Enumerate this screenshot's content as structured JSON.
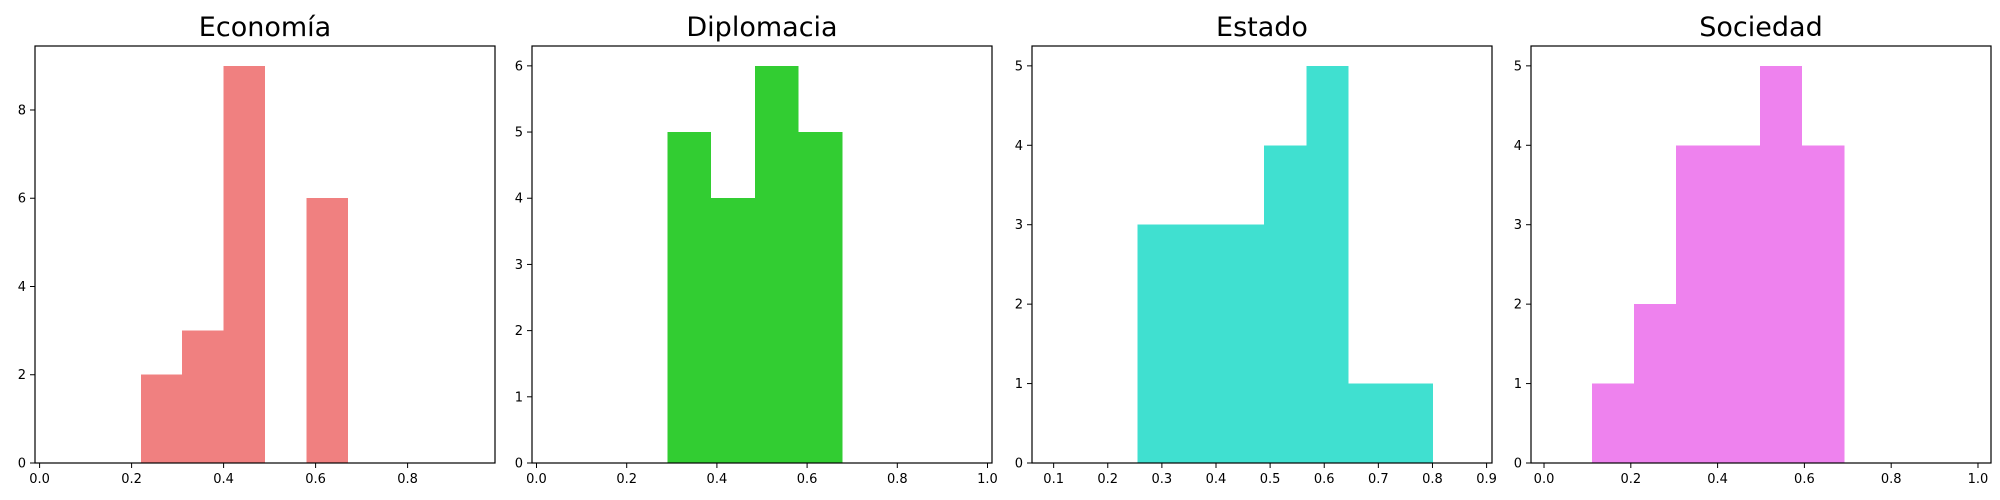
{
  "chart_data": [
    {
      "type": "bar",
      "title": "Economía",
      "color": "#f08080",
      "xlim": [
        -0.01,
        0.99
      ],
      "ylim": [
        0,
        9.45
      ],
      "xticks": [
        "0.0",
        "0.2",
        "0.4",
        "0.6",
        "0.8"
      ],
      "yticks": [
        "0",
        "2",
        "4",
        "6",
        "8"
      ],
      "bins": [
        {
          "start": 0.22,
          "end": 0.31,
          "count": 2
        },
        {
          "start": 0.31,
          "end": 0.4,
          "count": 3
        },
        {
          "start": 0.4,
          "end": 0.49,
          "count": 9
        },
        {
          "start": 0.49,
          "end": 0.58,
          "count": 0
        },
        {
          "start": 0.58,
          "end": 0.67,
          "count": 6
        }
      ]
    },
    {
      "type": "bar",
      "title": "Diplomacia",
      "color": "#32cd32",
      "xlim": [
        -0.01,
        1.01
      ],
      "ylim": [
        0,
        6.3
      ],
      "xticks": [
        "0.0",
        "0.2",
        "0.4",
        "0.6",
        "0.8",
        "1.0"
      ],
      "yticks": [
        "0",
        "1",
        "2",
        "3",
        "4",
        "5",
        "6"
      ],
      "bins": [
        {
          "start": 0.29,
          "end": 0.387,
          "count": 5
        },
        {
          "start": 0.387,
          "end": 0.484,
          "count": 4
        },
        {
          "start": 0.484,
          "end": 0.581,
          "count": 6
        },
        {
          "start": 0.581,
          "end": 0.678,
          "count": 5
        }
      ]
    },
    {
      "type": "bar",
      "title": "Estado",
      "color": "#40e0d0",
      "xlim": [
        0.06,
        0.91
      ],
      "ylim": [
        0,
        5.25
      ],
      "xticks": [
        "0.1",
        "0.2",
        "0.3",
        "0.4",
        "0.5",
        "0.6",
        "0.7",
        "0.8",
        "0.9"
      ],
      "yticks": [
        "0",
        "1",
        "2",
        "3",
        "4",
        "5"
      ],
      "bins": [
        {
          "start": 0.255,
          "end": 0.333,
          "count": 3
        },
        {
          "start": 0.333,
          "end": 0.411,
          "count": 3
        },
        {
          "start": 0.411,
          "end": 0.489,
          "count": 3
        },
        {
          "start": 0.489,
          "end": 0.567,
          "count": 4
        },
        {
          "start": 0.567,
          "end": 0.645,
          "count": 5
        },
        {
          "start": 0.645,
          "end": 0.723,
          "count": 1
        },
        {
          "start": 0.723,
          "end": 0.801,
          "count": 1
        }
      ]
    },
    {
      "type": "bar",
      "title": "Sociedad",
      "color": "#ee82ee",
      "xlim": [
        -0.03,
        1.03
      ],
      "ylim": [
        0,
        5.25
      ],
      "xticks": [
        "0.0",
        "0.2",
        "0.4",
        "0.6",
        "0.8",
        "1.0"
      ],
      "yticks": [
        "0",
        "1",
        "2",
        "3",
        "4",
        "5"
      ],
      "bins": [
        {
          "start": 0.11,
          "end": 0.207,
          "count": 1
        },
        {
          "start": 0.207,
          "end": 0.304,
          "count": 2
        },
        {
          "start": 0.304,
          "end": 0.401,
          "count": 4
        },
        {
          "start": 0.401,
          "end": 0.498,
          "count": 4
        },
        {
          "start": 0.498,
          "end": 0.595,
          "count": 5
        },
        {
          "start": 0.595,
          "end": 0.692,
          "count": 4
        }
      ]
    }
  ]
}
